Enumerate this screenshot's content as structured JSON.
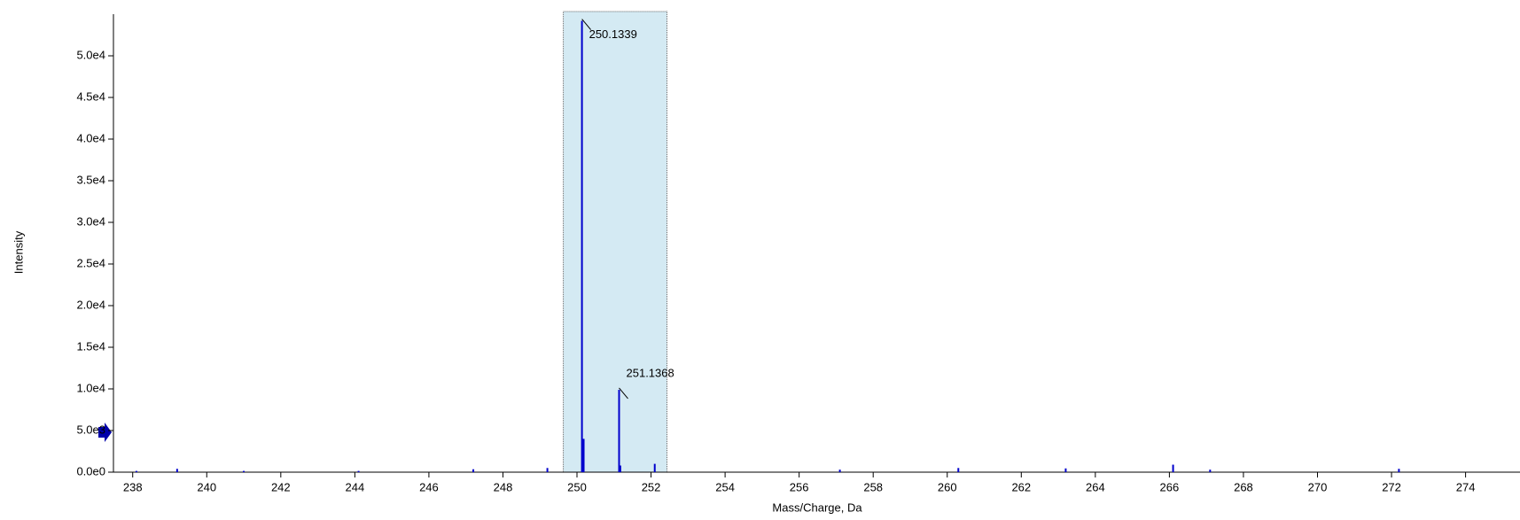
{
  "chart_data": {
    "type": "stick",
    "x_label": "Mass/Charge, Da",
    "y_label": "Intensity",
    "color": "#0000cc",
    "highlight_color": "#d4eaf3",
    "highlight_range": [
      249.63,
      252.43
    ],
    "xlim": [
      237.48,
      275.47
    ],
    "ylim": [
      0,
      55000
    ],
    "xticks": [
      238,
      240,
      242,
      244,
      246,
      248,
      250,
      252,
      254,
      256,
      258,
      260,
      262,
      264,
      266,
      268,
      270,
      272,
      274
    ],
    "yticks": [
      {
        "value": 0,
        "label": "0.0e0"
      },
      {
        "value": 5000,
        "label": "5.0e3"
      },
      {
        "value": 10000,
        "label": "1.0e4"
      },
      {
        "value": 15000,
        "label": "1.5e4"
      },
      {
        "value": 20000,
        "label": "2.0e4"
      },
      {
        "value": 25000,
        "label": "2.5e4"
      },
      {
        "value": 30000,
        "label": "3.0e4"
      },
      {
        "value": 35000,
        "label": "3.5e4"
      },
      {
        "value": 40000,
        "label": "4.0e4"
      },
      {
        "value": 45000,
        "label": "4.5e4"
      },
      {
        "value": 50000,
        "label": "5.0e4"
      }
    ],
    "x": [
      238.1,
      239.2,
      241.0,
      244.1,
      247.2,
      249.2,
      250.1339,
      250.18,
      251.1368,
      251.17,
      252.1,
      257.1,
      260.3,
      263.2,
      266.1,
      267.1,
      272.2
    ],
    "values": [
      150,
      400,
      150,
      150,
      350,
      500,
      54200,
      4000,
      9900,
      800,
      1000,
      300,
      500,
      450,
      900,
      300,
      400
    ],
    "annotations": [
      250.1339,
      251.1368
    ]
  }
}
